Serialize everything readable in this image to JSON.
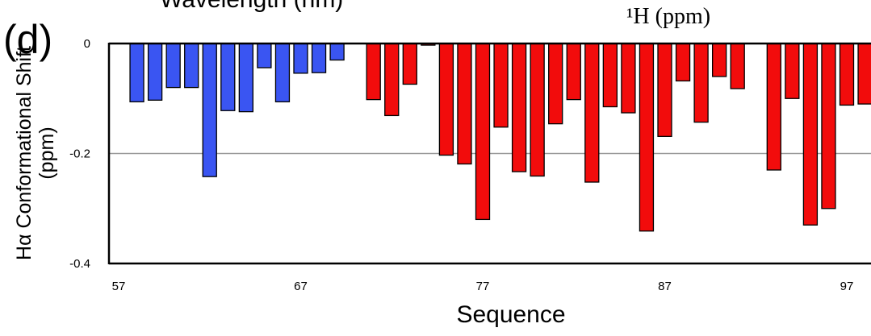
{
  "panel_label": "(d)",
  "top_left_caption": "Wavelength (nm)",
  "top_right_caption": "¹H (ppm)",
  "chart_data": {
    "type": "bar",
    "xlabel": "Sequence",
    "ylabel_line1": "Hα Conformational Shift",
    "ylabel_line2": "(ppm)",
    "xlim": [
      57,
      98
    ],
    "ylim": [
      -0.4,
      0
    ],
    "yticks": [
      0,
      -0.2,
      -0.4
    ],
    "ytick_labels": [
      "0",
      "-0.2",
      "-0.4"
    ],
    "xticks": [
      57,
      67,
      77,
      87,
      97
    ],
    "xtick_labels": [
      "57",
      "67",
      "77",
      "87",
      "97"
    ],
    "gridlines_y": [
      -0.2
    ],
    "colors": {
      "blue": "#3a55f2",
      "red": "#f20c0c",
      "grid": "#9a9a9a",
      "axis": "#000000"
    },
    "series": [
      {
        "color_key": "blue",
        "x": [
          58,
          59,
          60,
          61,
          62,
          63,
          64,
          65,
          66,
          67,
          68,
          69
        ],
        "values": [
          -0.106,
          -0.103,
          -0.08,
          -0.08,
          -0.242,
          -0.122,
          -0.124,
          -0.044,
          -0.106,
          -0.054,
          -0.053,
          -0.03
        ]
      },
      {
        "color_key": "red",
        "x": [
          71,
          72,
          73,
          74,
          75,
          76,
          77,
          78,
          79,
          80,
          81,
          82,
          83,
          84,
          85,
          86,
          87,
          88,
          89,
          90,
          91,
          93,
          94,
          95,
          96,
          97,
          98
        ],
        "values": [
          -0.102,
          -0.131,
          -0.074,
          -0.003,
          -0.203,
          -0.219,
          -0.32,
          -0.152,
          -0.233,
          -0.241,
          -0.146,
          -0.102,
          -0.252,
          -0.115,
          -0.126,
          -0.341,
          -0.169,
          -0.068,
          -0.143,
          -0.06,
          -0.082,
          -0.23,
          -0.1,
          -0.33,
          -0.3,
          -0.112,
          -0.11
        ]
      }
    ]
  }
}
